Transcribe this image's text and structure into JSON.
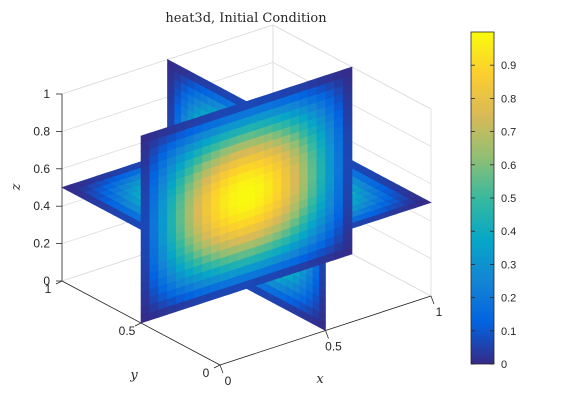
{
  "chart_data": {
    "type": "heatmap",
    "subtype": "3d-slice",
    "title": "heat3d, Initial Condition",
    "xlabel": "x",
    "ylabel": "y",
    "zlabel": "z",
    "xlim": [
      0,
      1
    ],
    "ylim": [
      0,
      1
    ],
    "zlim": [
      0,
      1
    ],
    "x_ticks": [
      "0",
      "0.5",
      "1"
    ],
    "y_ticks": [
      "0",
      "0.5",
      "1"
    ],
    "z_ticks": [
      "0",
      "0.2",
      "0.4",
      "0.6",
      "0.8",
      "1"
    ],
    "slices": [
      {
        "plane": "x",
        "value": 0.5
      },
      {
        "plane": "y",
        "value": 0.5
      },
      {
        "plane": "z",
        "value": 0.5
      }
    ],
    "color_range": [
      0,
      1
    ],
    "colormap": "parula",
    "colorbar_ticks": [
      "0",
      "0.1",
      "0.2",
      "0.3",
      "0.4",
      "0.5",
      "0.6",
      "0.7",
      "0.8",
      "0.9"
    ],
    "grid": true,
    "colors": {
      "parula_stops": [
        "#352a87",
        "#0363e1",
        "#1485d4",
        "#06a7c6",
        "#38b99e",
        "#92bf73",
        "#d9ba56",
        "#fcce2e",
        "#f9fb0e"
      ]
    }
  }
}
